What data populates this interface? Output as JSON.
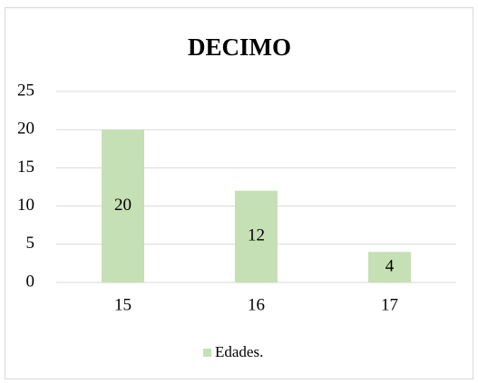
{
  "chart_data": {
    "type": "bar",
    "title": "DECIMO",
    "categories": [
      "15",
      "16",
      "17"
    ],
    "series": [
      {
        "name": "Edades.",
        "color": "#c5e0b4",
        "values": [
          20,
          12,
          4
        ]
      }
    ],
    "ylim": [
      0,
      25
    ],
    "yticks": [
      0,
      5,
      10,
      15,
      20,
      25
    ],
    "grid": true,
    "legend": "bottom",
    "data_labels": true
  }
}
